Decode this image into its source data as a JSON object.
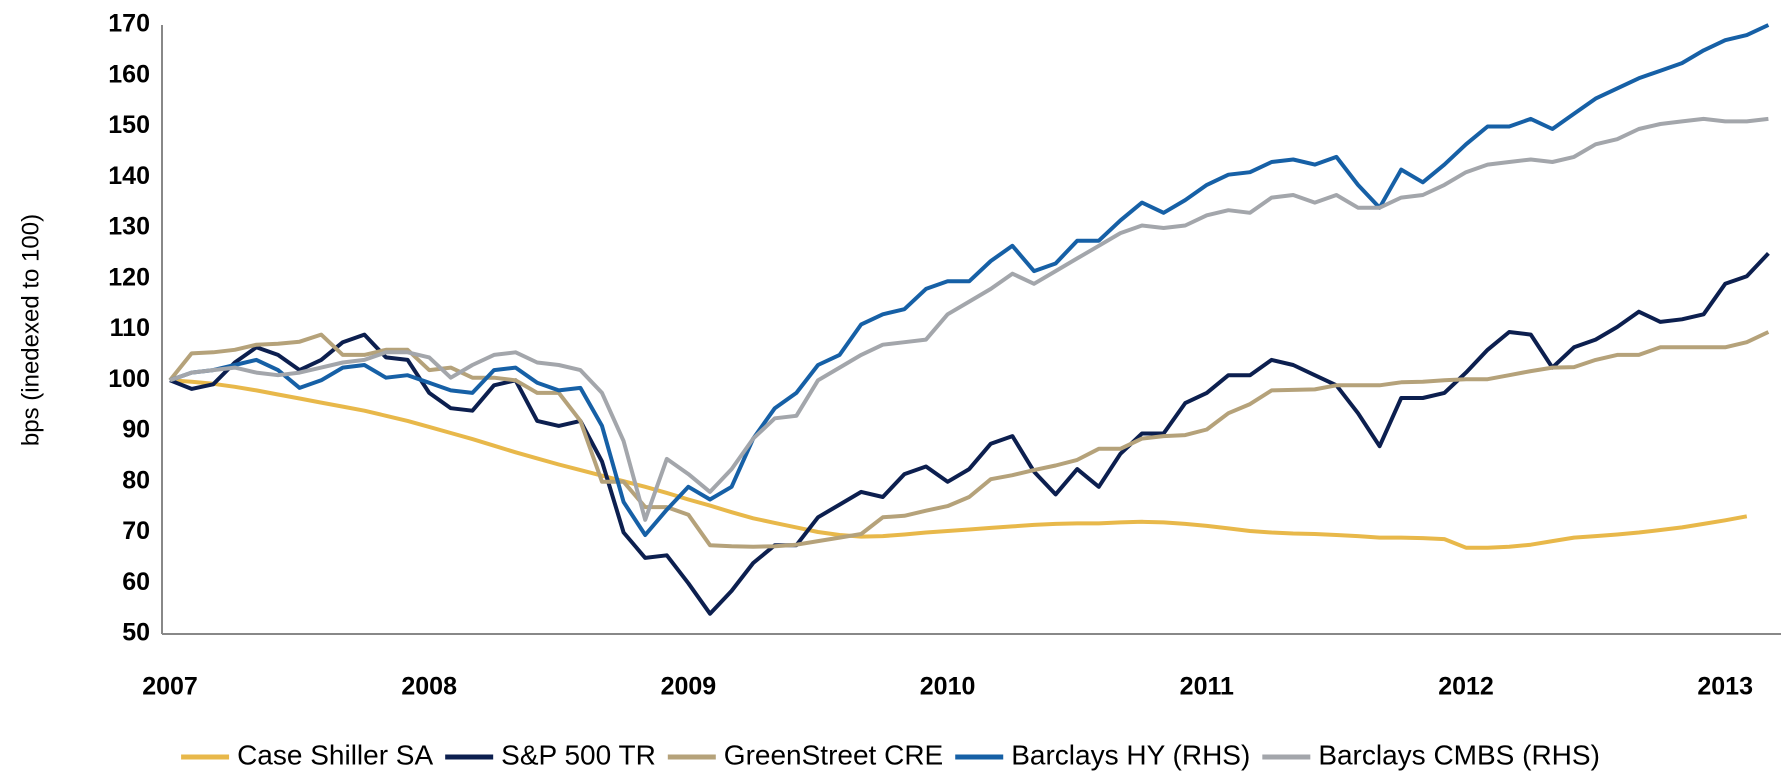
{
  "chart_data": {
    "type": "line",
    "y_label": "bps (inedexed to 100)",
    "categories": [
      "2007",
      null,
      null,
      null,
      null,
      null,
      null,
      null,
      null,
      null,
      null,
      null,
      "2008",
      null,
      null,
      null,
      null,
      null,
      null,
      null,
      null,
      null,
      null,
      null,
      "2009",
      null,
      null,
      null,
      null,
      null,
      null,
      null,
      null,
      null,
      null,
      null,
      "2010",
      null,
      null,
      null,
      null,
      null,
      null,
      null,
      null,
      null,
      null,
      null,
      "2011",
      null,
      null,
      null,
      null,
      null,
      null,
      null,
      null,
      null,
      null,
      null,
      "2012",
      null,
      null,
      null,
      null,
      null,
      null,
      null,
      null,
      null,
      null,
      null,
      "2013",
      null,
      null
    ],
    "ylim": [
      50,
      170
    ],
    "yticks": [
      50,
      60,
      70,
      80,
      90,
      100,
      110,
      120,
      130,
      140,
      150,
      160,
      170
    ],
    "series": [
      {
        "name": "Case Shiller SA",
        "color": "#e8b84a",
        "values": [
          100,
          99.7,
          99.3,
          98.7,
          98,
          97.2,
          96.4,
          95.6,
          94.8,
          94,
          93,
          92,
          90.8,
          89.6,
          88.4,
          87.1,
          85.8,
          84.6,
          83.4,
          82.3,
          81.2,
          80.1,
          79,
          77.8,
          76.5,
          75.3,
          74,
          72.8,
          71.9,
          71,
          70.1,
          69.5,
          69.2,
          69.3,
          69.6,
          70,
          70.3,
          70.6,
          70.9,
          71.2,
          71.5,
          71.7,
          71.8,
          71.8,
          72,
          72.1,
          72,
          71.7,
          71.3,
          70.8,
          70.3,
          70,
          69.8,
          69.7,
          69.5,
          69.3,
          69,
          69,
          68.9,
          68.7,
          67,
          67,
          67.2,
          67.6,
          68.3,
          69,
          69.3,
          69.6,
          70,
          70.5,
          71,
          71.7,
          72.4,
          73.2,
          null
        ]
      },
      {
        "name": "S&P 500 TR",
        "color": "#0c1f4f",
        "values": [
          100,
          98.3,
          99.2,
          103.5,
          106.5,
          105,
          102,
          104,
          107.5,
          109,
          104.5,
          104,
          97.5,
          94.5,
          94,
          99,
          100,
          92,
          91,
          92,
          84,
          70,
          65,
          65.5,
          60,
          54,
          58.5,
          64,
          67.5,
          67.5,
          73,
          75.5,
          78,
          77,
          81.5,
          83,
          80,
          82.5,
          87.5,
          89,
          82,
          77.5,
          82.5,
          79,
          85.5,
          89.5,
          89.5,
          95.5,
          97.5,
          101,
          101,
          104,
          103,
          101,
          99,
          93.5,
          87,
          96.5,
          96.5,
          97.5,
          101.5,
          106,
          109.5,
          109,
          102.5,
          106.5,
          108,
          110.5,
          113.5,
          111.5,
          112,
          113,
          119,
          120.5,
          125
        ]
      },
      {
        "name": "GreenStreet CRE",
        "color": "#b5a27a",
        "values": [
          100,
          105.3,
          105.5,
          106,
          107,
          107.2,
          107.6,
          109,
          105,
          105,
          106,
          106,
          102,
          102.5,
          100.5,
          100.5,
          100,
          97.5,
          97.5,
          92,
          80,
          80,
          75,
          75,
          73.5,
          67.5,
          67.3,
          67.2,
          67.3,
          67.6,
          68.3,
          69,
          69.7,
          73,
          73.3,
          74.3,
          75.2,
          77,
          80.5,
          81.3,
          82.3,
          83.2,
          84.3,
          86.5,
          86.5,
          88.5,
          89,
          89.2,
          90.3,
          93.5,
          95.3,
          98,
          98.1,
          98.2,
          99,
          99,
          99,
          99.6,
          99.7,
          100,
          100.2,
          100.2,
          101,
          101.8,
          102.5,
          102.6,
          104,
          105,
          105,
          106.5,
          106.5,
          106.5,
          106.5,
          107.5,
          109.5
        ]
      },
      {
        "name": "Barclays HY (RHS)",
        "color": "#1660a6",
        "values": [
          100,
          101.5,
          102,
          103,
          104,
          102,
          98.5,
          100,
          102.5,
          103,
          100.5,
          101,
          99.5,
          98,
          97.5,
          102,
          102.5,
          99.5,
          98,
          98.5,
          91,
          76,
          69.5,
          74.5,
          79,
          76.5,
          79,
          88.5,
          94.5,
          97.5,
          103,
          105,
          111,
          113,
          114,
          118,
          119.5,
          119.5,
          123.5,
          126.5,
          121.5,
          123,
          127.5,
          127.5,
          131.5,
          135,
          133,
          135.5,
          138.5,
          140.5,
          141,
          143,
          143.5,
          142.5,
          144,
          138.5,
          134,
          141.5,
          139,
          142.5,
          146.5,
          150,
          150,
          151.5,
          149.5,
          152.5,
          155.5,
          157.5,
          159.5,
          161,
          162.5,
          165,
          167,
          168,
          170
        ]
      },
      {
        "name": "Barclays CMBS (RHS)",
        "color": "#a3a6ab",
        "values": [
          100,
          101.5,
          102,
          102.5,
          101.5,
          101,
          101.5,
          102.5,
          103.5,
          104,
          105.5,
          105.5,
          104.5,
          100.5,
          103,
          105,
          105.5,
          103.5,
          103,
          102,
          97.5,
          88,
          72.5,
          84.5,
          81.5,
          78,
          82.5,
          88.5,
          92.5,
          93,
          100,
          102.5,
          105,
          107,
          107.5,
          108,
          113,
          115.5,
          118,
          121,
          119,
          121.5,
          124,
          126.5,
          129,
          130.5,
          130,
          130.5,
          132.5,
          133.5,
          133,
          136,
          136.5,
          135,
          136.5,
          134,
          134,
          136,
          136.5,
          138.5,
          141,
          142.5,
          143,
          143.5,
          143,
          144,
          146.5,
          147.5,
          149.5,
          150.5,
          151,
          151.5,
          151,
          151,
          151.5
        ]
      }
    ]
  }
}
